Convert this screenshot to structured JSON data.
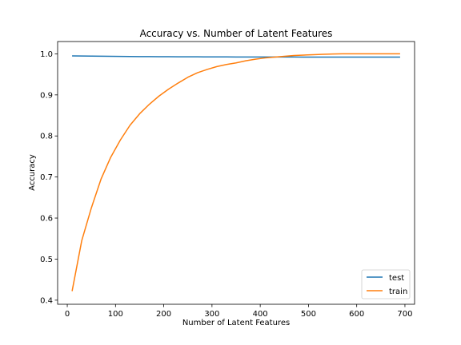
{
  "chart_data": {
    "type": "line",
    "title": "Accuracy vs. Number of Latent Features",
    "xlabel": "Number of Latent Features",
    "ylabel": "Accuracy",
    "xlim": [
      -20,
      720
    ],
    "ylim": [
      0.39,
      1.03
    ],
    "xticks": [
      0,
      100,
      200,
      300,
      400,
      500,
      600,
      700
    ],
    "yticks": [
      0.4,
      0.5,
      0.6,
      0.7,
      0.8,
      0.9,
      1.0
    ],
    "xtick_labels": [
      "0",
      "100",
      "200",
      "300",
      "400",
      "500",
      "600",
      "700"
    ],
    "ytick_labels": [
      "0.4",
      "0.5",
      "0.6",
      "0.7",
      "0.8",
      "0.9",
      "1.0"
    ],
    "grid": false,
    "legend_position": "lower-right",
    "series": [
      {
        "name": "test",
        "color": "#1f77b4",
        "x": [
          10,
          30,
          50,
          70,
          90,
          110,
          130,
          150,
          170,
          190,
          210,
          230,
          250,
          270,
          290,
          310,
          330,
          350,
          370,
          390,
          410,
          430,
          450,
          470,
          490,
          510,
          530,
          550,
          570,
          590,
          610,
          630,
          650,
          670,
          690
        ],
        "y": [
          0.995,
          0.9948,
          0.9945,
          0.9942,
          0.994,
          0.9937,
          0.9935,
          0.9933,
          0.9932,
          0.9931,
          0.993,
          0.9929,
          0.9928,
          0.9927,
          0.9926,
          0.9925,
          0.9925,
          0.9924,
          0.9924,
          0.9923,
          0.9923,
          0.9922,
          0.9922,
          0.9922,
          0.9921,
          0.9921,
          0.9921,
          0.9921,
          0.992,
          0.992,
          0.992,
          0.992,
          0.992,
          0.992,
          0.992
        ]
      },
      {
        "name": "train",
        "color": "#ff7f0e",
        "x": [
          10,
          30,
          50,
          70,
          90,
          110,
          130,
          150,
          170,
          190,
          210,
          230,
          250,
          270,
          290,
          310,
          330,
          350,
          370,
          390,
          410,
          430,
          450,
          470,
          490,
          510,
          530,
          550,
          570,
          590,
          610,
          630,
          650,
          670,
          690
        ],
        "y": [
          0.422,
          0.545,
          0.625,
          0.695,
          0.748,
          0.79,
          0.826,
          0.854,
          0.877,
          0.897,
          0.914,
          0.929,
          0.943,
          0.954,
          0.962,
          0.969,
          0.974,
          0.978,
          0.983,
          0.987,
          0.99,
          0.992,
          0.994,
          0.996,
          0.997,
          0.998,
          0.999,
          0.9995,
          1.0,
          1.0,
          1.0,
          1.0,
          1.0,
          1.0,
          1.0
        ]
      }
    ]
  }
}
